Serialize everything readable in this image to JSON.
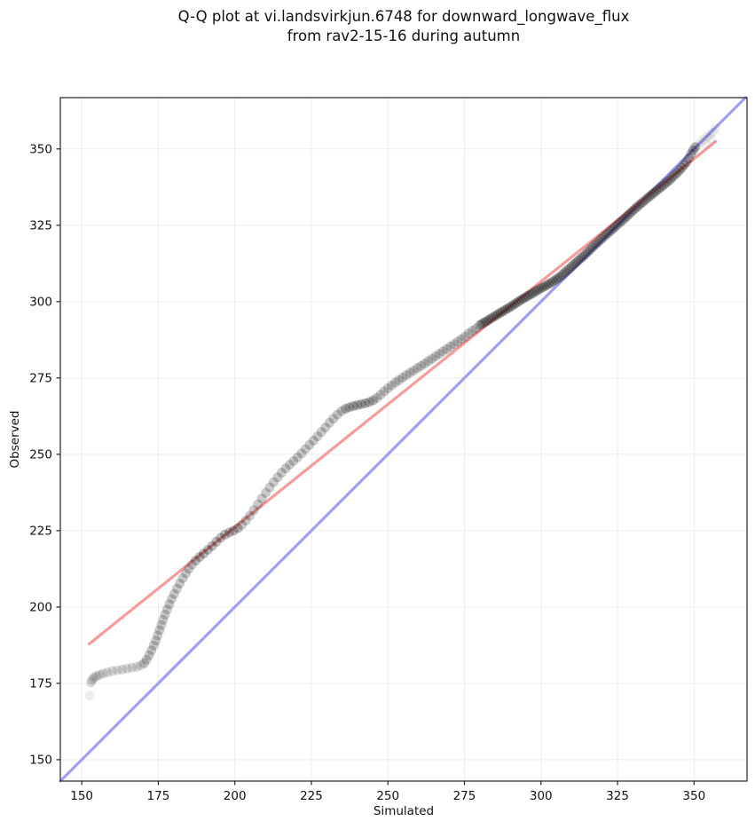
{
  "chart_data": {
    "type": "scatter",
    "title_line1": "Q-Q plot at vi.landsvirkjun.6748 for downward_longwave_flux",
    "title_line2": "from rav2-15-16 during autumn",
    "xlabel": "Simulated",
    "ylabel": "Observed",
    "xlim": [
      143,
      367.3
    ],
    "ylim": [
      143,
      366.8
    ],
    "xticks": [
      150,
      175,
      200,
      225,
      250,
      275,
      300,
      325,
      350
    ],
    "yticks": [
      150,
      175,
      200,
      225,
      250,
      275,
      300,
      325,
      350
    ],
    "grid": true,
    "grid_color": "#ededed",
    "spine_color": "#222222",
    "tick_label_color": "#111111",
    "identity_line": {
      "color": "#9fa0f4",
      "points": [
        [
          143,
          143
        ],
        [
          366.8,
          366.8
        ]
      ]
    },
    "fit_line": {
      "color": "#f79b9b",
      "points": [
        [
          152.4,
          187.9
        ],
        [
          357.0,
          352.4
        ]
      ]
    },
    "marker": {
      "color": "#000000",
      "base_opacity": 0.14,
      "radius_px": 5.5
    },
    "series": [
      {
        "name": "observed-vs-simulated-quantiles",
        "segments": [
          {
            "weight": 0.5,
            "points": [
              [
                152.5,
                171
              ]
            ]
          },
          {
            "weight": 1,
            "points": [
              [
                153,
                175.3
              ],
              [
                153.4,
                176.2
              ],
              [
                154,
                176.9
              ],
              [
                154.8,
                177.4
              ],
              [
                155.8,
                177.8
              ],
              [
                157,
                178.2
              ],
              [
                158.4,
                178.6
              ],
              [
                160,
                179
              ],
              [
                161.6,
                179.3
              ],
              [
                163.2,
                179.5
              ],
              [
                164.8,
                179.8
              ],
              [
                166.4,
                180.1
              ],
              [
                168,
                180.4
              ],
              [
                169.3,
                180.9
              ]
            ]
          },
          {
            "weight": 1.5,
            "points": [
              [
                170.4,
                181.6
              ],
              [
                171.2,
                182.8
              ],
              [
                172,
                184.2
              ],
              [
                172.8,
                185.8
              ],
              [
                173.5,
                187.4
              ],
              [
                174.2,
                189
              ],
              [
                174.8,
                190.7
              ],
              [
                175.4,
                192.4
              ],
              [
                176,
                194.1
              ],
              [
                176.6,
                195.8
              ],
              [
                177.2,
                197.5
              ],
              [
                177.9,
                199.2
              ],
              [
                178.6,
                200.9
              ],
              [
                179.4,
                202.6
              ],
              [
                180.2,
                204.3
              ],
              [
                181.1,
                206
              ],
              [
                182,
                207.7
              ],
              [
                183,
                209.4
              ],
              [
                184,
                211
              ],
              [
                185,
                212.5
              ],
              [
                186,
                213.9
              ]
            ]
          },
          {
            "weight": 2,
            "points": [
              [
                187.2,
                215.2
              ],
              [
                188.5,
                216.4
              ],
              [
                189.8,
                217.5
              ],
              [
                191.2,
                218.7
              ],
              [
                192.6,
                220
              ],
              [
                194,
                221.4
              ],
              [
                195.4,
                222.7
              ],
              [
                196.8,
                223.7
              ],
              [
                198.2,
                224.4
              ],
              [
                199.6,
                225
              ],
              [
                201,
                225.8
              ]
            ]
          },
          {
            "weight": 1.5,
            "points": [
              [
                202.3,
                226.9
              ],
              [
                203.6,
                228.3
              ],
              [
                204.9,
                229.9
              ],
              [
                206.2,
                231.7
              ],
              [
                207.5,
                233.6
              ],
              [
                208.8,
                235.5
              ],
              [
                210.1,
                237.4
              ],
              [
                211.4,
                239.2
              ],
              [
                212.7,
                240.9
              ],
              [
                214,
                242.5
              ],
              [
                215.3,
                244
              ],
              [
                216.6,
                245.4
              ],
              [
                217.9,
                246.6
              ],
              [
                219.2,
                247.8
              ],
              [
                220.5,
                249
              ],
              [
                221.8,
                250.3
              ],
              [
                223.1,
                251.7
              ],
              [
                224.4,
                253.1
              ],
              [
                225.7,
                254.5
              ],
              [
                227,
                255.9
              ],
              [
                228.3,
                257.3
              ],
              [
                229.6,
                258.8
              ],
              [
                230.9,
                260.3
              ],
              [
                232.2,
                261.7
              ],
              [
                233.5,
                263
              ],
              [
                234.8,
                264.1
              ]
            ]
          },
          {
            "weight": 2,
            "points": [
              [
                236.1,
                264.9
              ],
              [
                237.4,
                265.4
              ],
              [
                238.7,
                265.8
              ],
              [
                240,
                266.1
              ],
              [
                241.3,
                266.4
              ],
              [
                242.6,
                266.7
              ],
              [
                243.9,
                267.1
              ],
              [
                245.2,
                267.7
              ]
            ]
          },
          {
            "weight": 1.5,
            "points": [
              [
                246.4,
                268.5
              ],
              [
                247.6,
                269.5
              ],
              [
                248.8,
                270.6
              ],
              [
                250,
                271.6
              ],
              [
                251.2,
                272.6
              ],
              [
                252.4,
                273.5
              ],
              [
                253.6,
                274.3
              ],
              [
                254.8,
                275.1
              ],
              [
                256,
                275.9
              ],
              [
                257.2,
                276.7
              ],
              [
                258.4,
                277.4
              ],
              [
                259.6,
                278.2
              ],
              [
                260.8,
                278.9
              ],
              [
                262,
                279.7
              ],
              [
                263.2,
                280.5
              ],
              [
                264.4,
                281.3
              ],
              [
                265.6,
                282.1
              ],
              [
                266.8,
                282.9
              ],
              [
                268,
                283.7
              ],
              [
                269.2,
                284.5
              ],
              [
                270.4,
                285.3
              ],
              [
                271.6,
                286.1
              ],
              [
                272.8,
                286.9
              ],
              [
                274,
                287.7
              ],
              [
                275.2,
                288.6
              ],
              [
                276.4,
                289.6
              ],
              [
                277.6,
                290.5
              ],
              [
                278.8,
                291.2
              ]
            ]
          },
          {
            "weight": 2,
            "points": [
              [
                280,
                292.3
              ],
              [
                280.75,
                292.75
              ],
              [
                281.5,
                293.2
              ],
              [
                282.25,
                293.65
              ],
              [
                283,
                294.1
              ],
              [
                283.75,
                294.55
              ],
              [
                284.5,
                295
              ],
              [
                285.25,
                295.45
              ],
              [
                286,
                295.9
              ],
              [
                286.75,
                296.35
              ],
              [
                287.5,
                296.8
              ],
              [
                288.25,
                297.25
              ],
              [
                289,
                297.7
              ],
              [
                289.75,
                298.15
              ],
              [
                290.5,
                298.6
              ],
              [
                291.25,
                299.1
              ],
              [
                292,
                299.6
              ],
              [
                292.75,
                300.1
              ],
              [
                293.5,
                300.55
              ],
              [
                294.25,
                301
              ],
              [
                295,
                301.5
              ],
              [
                295.75,
                301.9
              ],
              [
                296.5,
                302.3
              ],
              [
                297.25,
                302.7
              ],
              [
                298,
                303.2
              ],
              [
                298.75,
                303.65
              ],
              [
                299.5,
                304.1
              ],
              [
                300.25,
                304.5
              ],
              [
                301,
                304.9
              ],
              [
                301.75,
                305.3
              ],
              [
                302.5,
                305.75
              ],
              [
                303.25,
                306.15
              ],
              [
                304,
                306.65
              ],
              [
                304.75,
                307.15
              ],
              [
                305.5,
                307.65
              ],
              [
                306.25,
                308.2
              ],
              [
                307,
                308.85
              ],
              [
                307.75,
                309.5
              ],
              [
                308.5,
                310.2
              ],
              [
                309.25,
                310.8
              ],
              [
                310,
                311.5
              ],
              [
                310.75,
                312.2
              ],
              [
                311.5,
                312.85
              ],
              [
                312.25,
                313.5
              ],
              [
                313,
                314.2
              ],
              [
                313.75,
                314.8
              ],
              [
                314.5,
                315.5
              ],
              [
                315.25,
                316.25
              ],
              [
                316,
                317
              ],
              [
                316.75,
                317.75
              ],
              [
                317.5,
                318.5
              ],
              [
                318.25,
                319.1
              ],
              [
                319,
                319.8
              ],
              [
                319.75,
                320.5
              ],
              [
                320.5,
                321.2
              ],
              [
                321.25,
                321.9
              ],
              [
                322,
                322.5
              ],
              [
                322.75,
                323.2
              ],
              [
                323.5,
                323.8
              ],
              [
                324.25,
                324.5
              ],
              [
                325,
                325.2
              ],
              [
                325.75,
                325.9
              ],
              [
                326.5,
                326.5
              ],
              [
                327.25,
                327.2
              ],
              [
                328,
                327.9
              ],
              [
                328.75,
                328.6
              ],
              [
                329.5,
                329.3
              ],
              [
                330.25,
                330
              ],
              [
                331,
                330.7
              ],
              [
                331.75,
                331.3
              ],
              [
                332.5,
                332
              ],
              [
                333.25,
                332.6
              ],
              [
                334,
                333.2
              ],
              [
                334.75,
                333.9
              ],
              [
                335.5,
                334.5
              ],
              [
                336.25,
                335.1
              ],
              [
                337,
                335.7
              ],
              [
                337.75,
                336.3
              ],
              [
                338.5,
                336.9
              ],
              [
                339.25,
                337.5
              ],
              [
                340,
                338.1
              ],
              [
                340.75,
                338.8
              ],
              [
                341.5,
                339.4
              ],
              [
                342.25,
                340
              ],
              [
                343,
                340.8
              ],
              [
                343.75,
                341.5
              ],
              [
                344.5,
                342.2
              ],
              [
                345.25,
                343
              ],
              [
                346,
                343.8
              ],
              [
                346.75,
                344.7
              ],
              [
                347.5,
                345.6
              ],
              [
                348.25,
                346.9
              ],
              [
                349,
                348.4
              ],
              [
                349.75,
                349.6
              ],
              [
                350.4,
                350.6
              ]
            ]
          },
          {
            "weight": 0.4,
            "points": [
              [
                351.2,
                351.2
              ],
              [
                352.2,
                352.2
              ],
              [
                353.2,
                353.1
              ],
              [
                354.2,
                354
              ],
              [
                355.2,
                354.8
              ],
              [
                356.2,
                355.5
              ],
              [
                357,
                356.8
              ],
              [
                355.6,
                353.3
              ],
              [
                353.9,
                351.6
              ]
            ]
          }
        ]
      }
    ]
  }
}
